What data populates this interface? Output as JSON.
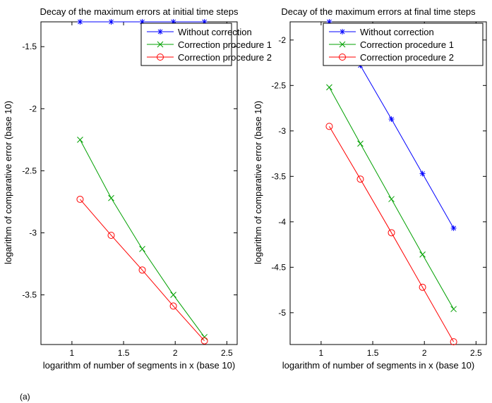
{
  "chart_data": [
    {
      "type": "line",
      "title": "Decay of the maximum errors at initial time steps",
      "xlabel": "logarithm of number of segments in x (base 10)",
      "ylabel": "logarithm of comparative error (base 10)",
      "xlim": [
        0.7,
        2.6
      ],
      "ylim": [
        -3.9,
        -1.3
      ],
      "xticks": [
        1,
        1.5,
        2,
        2.5
      ],
      "xtick_labels": [
        "1",
        "1.5",
        "2",
        "2.5"
      ],
      "yticks": [
        -1.5,
        -2,
        -2.5,
        -3,
        -3.5
      ],
      "ytick_labels": [
        "-1.5",
        "-2",
        "-2.5",
        "-3",
        "-3.5"
      ],
      "legend": "top-right",
      "series": [
        {
          "name": "Without correction",
          "color": "#0000ff",
          "marker": "star",
          "x": [
            1.079,
            1.38,
            1.681,
            1.982,
            2.283
          ],
          "y": [
            -1.3,
            -1.3,
            -1.3,
            -1.3,
            -1.3
          ]
        },
        {
          "name": "Correction procedure 1",
          "color": "#00a000",
          "marker": "x",
          "x": [
            1.079,
            1.38,
            1.681,
            1.982,
            2.283
          ],
          "y": [
            -2.25,
            -2.72,
            -3.13,
            -3.5,
            -3.84
          ]
        },
        {
          "name": "Correction procedure 2",
          "color": "#ff0000",
          "marker": "circle",
          "x": [
            1.079,
            1.38,
            1.681,
            1.982,
            2.283
          ],
          "y": [
            -2.73,
            -3.02,
            -3.3,
            -3.59,
            -3.87
          ]
        }
      ]
    },
    {
      "type": "line",
      "title": "Decay of the maximum errors at final time steps",
      "xlabel": "logarithm of number of segments in x (base 10)",
      "ylabel": "logarithm of comparative error (base 10)",
      "xlim": [
        0.7,
        2.6
      ],
      "ylim": [
        -5.35,
        -1.8
      ],
      "xticks": [
        1,
        1.5,
        2,
        2.5
      ],
      "xtick_labels": [
        "1",
        "1.5",
        "2",
        "2.5"
      ],
      "yticks": [
        -2,
        -2.5,
        -3,
        -3.5,
        -4,
        -4.5,
        -5
      ],
      "ytick_labels": [
        "-2",
        "-2.5",
        "-3",
        "-3.5",
        "-4",
        "-4.5",
        "-5"
      ],
      "legend": "top-right",
      "series": [
        {
          "name": "Without correction",
          "color": "#0000ff",
          "marker": "star",
          "x": [
            1.079,
            1.38,
            1.681,
            1.982,
            2.283
          ],
          "y": [
            -1.8,
            -2.28,
            -2.87,
            -3.47,
            -4.07
          ]
        },
        {
          "name": "Correction procedure 1",
          "color": "#00a000",
          "marker": "x",
          "x": [
            1.079,
            1.38,
            1.681,
            1.982,
            2.283
          ],
          "y": [
            -2.52,
            -3.14,
            -3.75,
            -4.36,
            -4.96
          ]
        },
        {
          "name": "Correction procedure 2",
          "color": "#ff0000",
          "marker": "circle",
          "x": [
            1.079,
            1.38,
            1.681,
            1.982,
            2.283
          ],
          "y": [
            -2.95,
            -3.53,
            -4.12,
            -4.72,
            -5.32
          ]
        }
      ]
    }
  ],
  "footnote": "(a)"
}
